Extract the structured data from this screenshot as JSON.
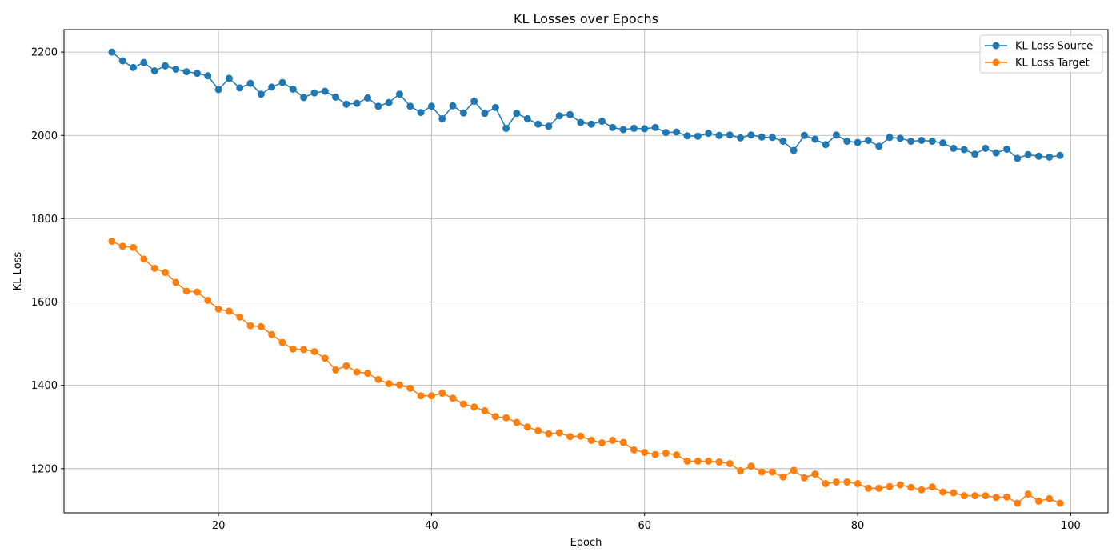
{
  "chart_data": {
    "type": "line",
    "title": "KL Losses over Epochs",
    "xlabel": "Epoch",
    "ylabel": "KL Loss",
    "xlim": [
      5.5,
      103.5
    ],
    "ylim": [
      1094,
      2254
    ],
    "xticks": [
      20,
      40,
      60,
      80,
      100
    ],
    "yticks": [
      1200,
      1400,
      1600,
      1800,
      2000,
      2200
    ],
    "grid": true,
    "legend_position": "top-right",
    "x": [
      10,
      11,
      12,
      13,
      14,
      15,
      16,
      17,
      18,
      19,
      20,
      21,
      22,
      23,
      24,
      25,
      26,
      27,
      28,
      29,
      30,
      31,
      32,
      33,
      34,
      35,
      36,
      37,
      38,
      39,
      40,
      41,
      42,
      43,
      44,
      45,
      46,
      47,
      48,
      49,
      50,
      51,
      52,
      53,
      54,
      55,
      56,
      57,
      58,
      59,
      60,
      61,
      62,
      63,
      64,
      65,
      66,
      67,
      68,
      69,
      70,
      71,
      72,
      73,
      74,
      75,
      76,
      77,
      78,
      79,
      80,
      81,
      82,
      83,
      84,
      85,
      86,
      87,
      88,
      89,
      90,
      91,
      92,
      93,
      94,
      95,
      96,
      97,
      98,
      99
    ],
    "series": [
      {
        "name": "KL Loss Source",
        "color": "#1f77b4",
        "values": [
          2200,
          2179,
          2163,
          2175,
          2155,
          2167,
          2159,
          2153,
          2149,
          2143,
          2110,
          2137,
          2114,
          2125,
          2099,
          2116,
          2127,
          2111,
          2091,
          2102,
          2106,
          2092,
          2075,
          2077,
          2090,
          2070,
          2079,
          2099,
          2070,
          2055,
          2070,
          2040,
          2071,
          2054,
          2082,
          2053,
          2067,
          2017,
          2053,
          2040,
          2027,
          2022,
          2047,
          2050,
          2031,
          2027,
          2034,
          2019,
          2014,
          2017,
          2016,
          2019,
          2007,
          2008,
          1999,
          1998,
          2005,
          2000,
          2001,
          1994,
          2001,
          1996,
          1995,
          1986,
          1964,
          2000,
          1991,
          1978,
          2001,
          1986,
          1983,
          1988,
          1974,
          1995,
          1993,
          1986,
          1988,
          1986,
          1982,
          1969,
          1966,
          1955,
          1969,
          1958,
          1967,
          1945,
          1954,
          1950,
          1948,
          1952
        ]
      },
      {
        "name": "KL Loss Target",
        "color": "#ff7f0e",
        "values": [
          1746,
          1734,
          1731,
          1703,
          1681,
          1671,
          1647,
          1626,
          1624,
          1604,
          1583,
          1578,
          1564,
          1543,
          1541,
          1522,
          1503,
          1487,
          1486,
          1481,
          1465,
          1437,
          1447,
          1432,
          1429,
          1414,
          1404,
          1401,
          1393,
          1375,
          1375,
          1381,
          1369,
          1355,
          1348,
          1339,
          1325,
          1322,
          1311,
          1300,
          1291,
          1284,
          1286,
          1277,
          1278,
          1268,
          1262,
          1268,
          1263,
          1245,
          1239,
          1234,
          1237,
          1233,
          1218,
          1218,
          1218,
          1216,
          1212,
          1195,
          1206,
          1192,
          1192,
          1180,
          1196,
          1178,
          1187,
          1164,
          1168,
          1168,
          1164,
          1153,
          1153,
          1157,
          1161,
          1155,
          1149,
          1156,
          1144,
          1142,
          1135,
          1135,
          1135,
          1131,
          1132,
          1117,
          1139,
          1122,
          1128,
          1117
        ]
      }
    ]
  }
}
